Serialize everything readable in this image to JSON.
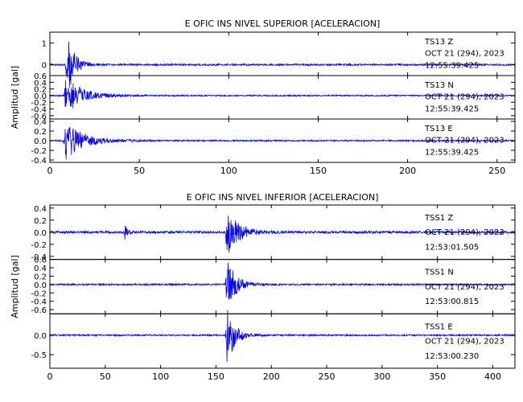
{
  "chart_data": [
    {
      "type": "line",
      "title": "E OFIC INS NIVEL SUPERIOR [ACELERACION]",
      "ylabel": "Amplitud [gal]",
      "xlim": [
        0,
        260
      ],
      "x_ticks": [
        0,
        50,
        100,
        150,
        200,
        250
      ],
      "series": [
        {
          "name": "TS13   Z",
          "date": "OCT 21 (294), 2023",
          "time": "12:55:39.425",
          "ylim": [
            -0.5,
            1.5
          ],
          "y_ticks": [
            1,
            0
          ],
          "events": [
            {
              "t": 10,
              "amp": 1.35,
              "decay": 4
            }
          ],
          "noise": 0.04
        },
        {
          "name": "TS13   N",
          "date": "OCT 21 (294), 2023",
          "time": "12:55:39.425",
          "ylim": [
            -0.7,
            0.6
          ],
          "y_ticks": [
            0.6,
            0.4,
            0.2,
            0.0,
            -0.2,
            -0.4,
            -0.6
          ],
          "events": [
            {
              "t": 9,
              "amp": 0.55,
              "decay": 9
            }
          ],
          "noise": 0.02
        },
        {
          "name": "TS13   E",
          "date": "OCT 21 (294), 2023",
          "time": "12:55:39.425",
          "ylim": [
            -0.45,
            0.45
          ],
          "y_ticks": [
            0.4,
            0.2,
            0.0,
            -0.2,
            -0.4
          ],
          "events": [
            {
              "t": 9,
              "amp": 0.38,
              "decay": 10
            }
          ],
          "noise": 0.015
        }
      ]
    },
    {
      "type": "line",
      "title": "E OFIC INS NIVEL INFERIOR [ACELERACION]",
      "ylabel": "Amplitud [gal]",
      "xlim": [
        0,
        420
      ],
      "x_ticks": [
        0,
        50,
        100,
        150,
        200,
        250,
        300,
        350,
        400
      ],
      "series": [
        {
          "name": "TSS1   Z",
          "date": "OCT 21 (294), 2023",
          "time": "12:53:01.505",
          "ylim": [
            -0.45,
            0.45
          ],
          "y_ticks": [
            0.4,
            0.2,
            0.0,
            -0.2,
            -0.4
          ],
          "events": [
            {
              "t": 68,
              "amp": 0.12,
              "decay": 2
            },
            {
              "t": 160,
              "amp": 0.38,
              "decay": 10
            }
          ],
          "noise": 0.02
        },
        {
          "name": "TSS1   N",
          "date": "OCT 21 (294), 2023",
          "time": "12:53:00.815",
          "ylim": [
            -0.7,
            0.6
          ],
          "y_ticks": [
            0.6,
            0.4,
            0.2,
            0.0,
            -0.2,
            -0.4,
            -0.6
          ],
          "events": [
            {
              "t": 160,
              "amp": 0.62,
              "decay": 8
            }
          ],
          "noise": 0.02
        },
        {
          "name": "TSS1   E",
          "date": "OCT 21 (294), 2023",
          "time": "12:53:00.230",
          "ylim": [
            -0.85,
            0.55
          ],
          "y_ticks": [
            0.0,
            -0.5
          ],
          "events": [
            {
              "t": 160,
              "amp": 0.75,
              "decay": 7
            }
          ],
          "noise": 0.02
        }
      ]
    }
  ]
}
